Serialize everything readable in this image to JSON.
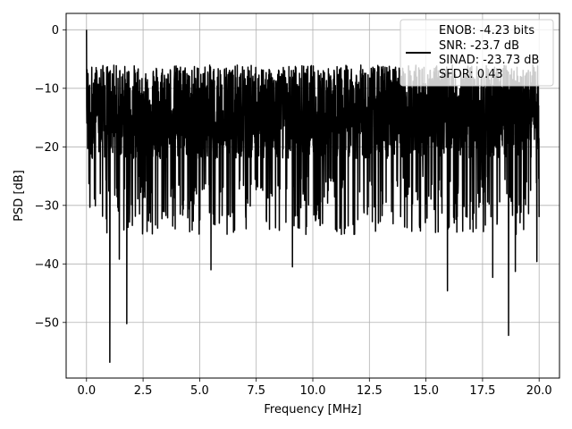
{
  "chart_data": {
    "type": "line",
    "title": "",
    "xlabel": "Frequency [MHz]",
    "ylabel": "PSD [dB]",
    "xlim": [
      -0.9,
      20.9
    ],
    "ylim": [
      -59.5,
      2.8
    ],
    "xticks": [
      0.0,
      2.5,
      5.0,
      7.5,
      10.0,
      12.5,
      15.0,
      17.5,
      20.0
    ],
    "xtick_labels": [
      "0.0",
      "2.5",
      "5.0",
      "7.5",
      "10.0",
      "12.5",
      "15.0",
      "17.5",
      "20.0"
    ],
    "yticks": [
      0,
      -10,
      -20,
      -30,
      -40,
      -50
    ],
    "ytick_labels": [
      "0",
      "−10",
      "−20",
      "−30",
      "−40",
      "−50"
    ],
    "grid": true,
    "legend_position": "top-right",
    "line_color": "#000000",
    "series": [
      {
        "name": "",
        "noise": {
          "x_range": [
            0.0,
            20.0
          ],
          "floor_db": -22,
          "upper_db": [
            -13,
            -6
          ],
          "dips_db": [
            -25,
            -35
          ]
        },
        "features": [
          {
            "x": 0.0,
            "y": 0.0
          },
          {
            "x": 0.04,
            "y": -7.5
          },
          {
            "x": 1.03,
            "y": -56.8
          },
          {
            "x": 1.78,
            "y": -50.2
          },
          {
            "x": 1.45,
            "y": -39.2
          },
          {
            "x": 5.5,
            "y": -41.0
          },
          {
            "x": 9.1,
            "y": -40.5
          },
          {
            "x": 15.95,
            "y": -44.6
          },
          {
            "x": 17.95,
            "y": -42.3
          },
          {
            "x": 18.65,
            "y": -52.2
          },
          {
            "x": 18.95,
            "y": -41.3
          },
          {
            "x": 19.9,
            "y": -39.6
          },
          {
            "x": 20.0,
            "y": -32.0
          }
        ]
      }
    ],
    "legend": {
      "lines": [
        "ENOB: -4.23 bits",
        "SNR: -23.7 dB",
        "SINAD: -23.73 dB",
        "SFDR: 0.43"
      ]
    }
  }
}
